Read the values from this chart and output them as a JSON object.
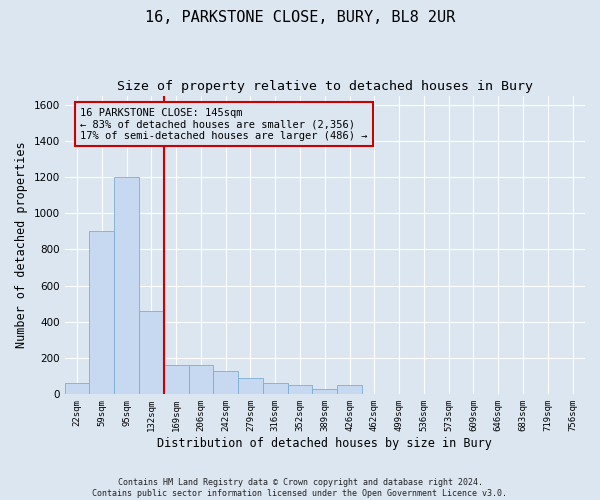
{
  "title1": "16, PARKSTONE CLOSE, BURY, BL8 2UR",
  "title2": "Size of property relative to detached houses in Bury",
  "xlabel": "Distribution of detached houses by size in Bury",
  "ylabel": "Number of detached properties",
  "footnote": "Contains HM Land Registry data © Crown copyright and database right 2024.\nContains public sector information licensed under the Open Government Licence v3.0.",
  "bin_labels": [
    "22sqm",
    "59sqm",
    "95sqm",
    "132sqm",
    "169sqm",
    "206sqm",
    "242sqm",
    "279sqm",
    "316sqm",
    "352sqm",
    "389sqm",
    "426sqm",
    "462sqm",
    "499sqm",
    "536sqm",
    "573sqm",
    "609sqm",
    "646sqm",
    "683sqm",
    "719sqm",
    "756sqm"
  ],
  "bar_values": [
    60,
    900,
    1200,
    460,
    160,
    160,
    130,
    90,
    65,
    50,
    30,
    50,
    0,
    0,
    0,
    0,
    0,
    0,
    0,
    0,
    0
  ],
  "bar_color": "#c6d9f0",
  "bar_edge_color": "#7aadd4",
  "vline_x": 3.5,
  "vline_color": "#cc0000",
  "annotation_text": "16 PARKSTONE CLOSE: 145sqm\n← 83% of detached houses are smaller (2,356)\n17% of semi-detached houses are larger (486) →",
  "annotation_box_color": "#cc0000",
  "ylim": [
    0,
    1650
  ],
  "yticks": [
    0,
    200,
    400,
    600,
    800,
    1000,
    1200,
    1400,
    1600
  ],
  "bg_color": "#dce6f1",
  "grid_color": "#ffffff",
  "title1_fontsize": 11,
  "title2_fontsize": 9.5,
  "footnote_fontsize": 6.0
}
